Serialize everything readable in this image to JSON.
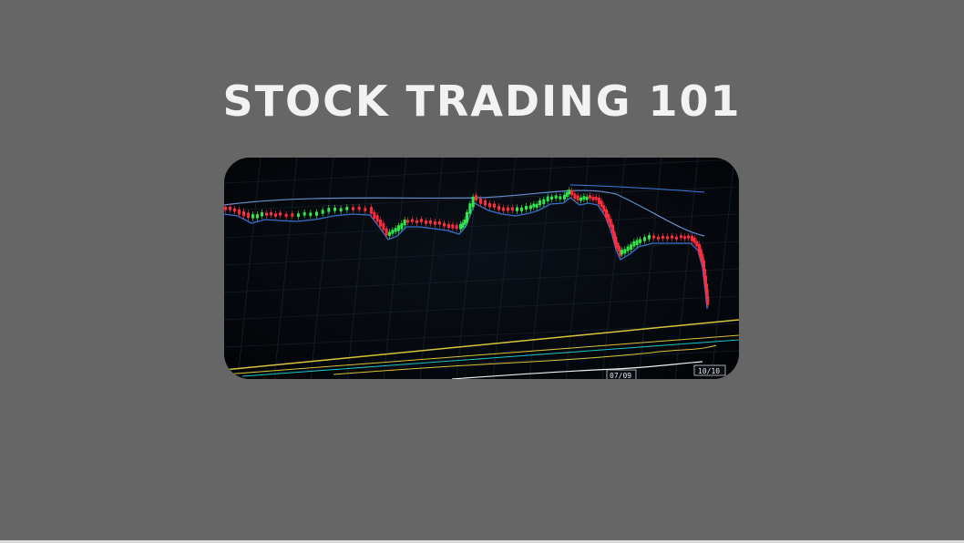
{
  "slide": {
    "title": "STOCK TRADING 101",
    "background_color": "#666666",
    "title_color": "#f2f2f2"
  },
  "image": {
    "alt": "Candlestick stock chart on a trading screen showing a sharp drop",
    "labels": {
      "date_left": "07/09",
      "date_right": "10/10"
    },
    "colors": {
      "up_candle": "#2ee84a",
      "down_candle": "#ff2b3a",
      "moving_average_1": "#3b7de0",
      "moving_average_2": "#7fb0ff",
      "indicator_yellow": "#d9c53a"
    }
  }
}
